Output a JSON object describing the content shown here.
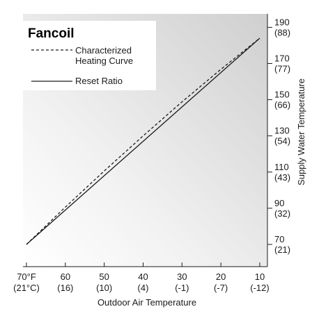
{
  "chart_data": {
    "type": "line",
    "xlabel": "Outdoor Air Temperature",
    "ylabel": "Supply Water Temperature",
    "xlim": [
      70,
      10
    ],
    "ylim": [
      60,
      190
    ],
    "x_ticks": [
      {
        "value": 70,
        "label": "70°F",
        "sublabel": "(21°C)"
      },
      {
        "value": 60,
        "label": "60",
        "sublabel": "(16)"
      },
      {
        "value": 50,
        "label": "50",
        "sublabel": "(10)"
      },
      {
        "value": 40,
        "label": "40",
        "sublabel": "(4)"
      },
      {
        "value": 30,
        "label": "30",
        "sublabel": "(-1)"
      },
      {
        "value": 20,
        "label": "20",
        "sublabel": "(-7)"
      },
      {
        "value": 10,
        "label": "10",
        "sublabel": "(-12)"
      }
    ],
    "y_ticks": [
      {
        "value": 70,
        "label": "70",
        "sublabel": "(21)"
      },
      {
        "value": 90,
        "label": "90",
        "sublabel": "(32)"
      },
      {
        "value": 110,
        "label": "110",
        "sublabel": "(43)"
      },
      {
        "value": 130,
        "label": "130",
        "sublabel": "(54)"
      },
      {
        "value": 150,
        "label": "150",
        "sublabel": "(66)"
      },
      {
        "value": 170,
        "label": "170",
        "sublabel": "(77)"
      },
      {
        "value": 190,
        "label": "190",
        "sublabel": "(88)"
      }
    ],
    "legend_title": "Fancoil",
    "legend_position": "top-left",
    "series": [
      {
        "name": "Characterized Heating Curve",
        "style": "dashed",
        "x": [
          70,
          60,
          50,
          40,
          30,
          20,
          10
        ],
        "y": [
          70,
          90.6,
          110.6,
          130,
          148.8,
          166.8,
          184
        ]
      },
      {
        "name": "Reset Ratio",
        "style": "solid",
        "x": [
          70,
          10
        ],
        "y": [
          70,
          184
        ]
      }
    ],
    "colors": {
      "line": "#1a1a1a",
      "background_light": "#ffffff",
      "background_dark": "#cfcfcf"
    },
    "grid": false
  }
}
